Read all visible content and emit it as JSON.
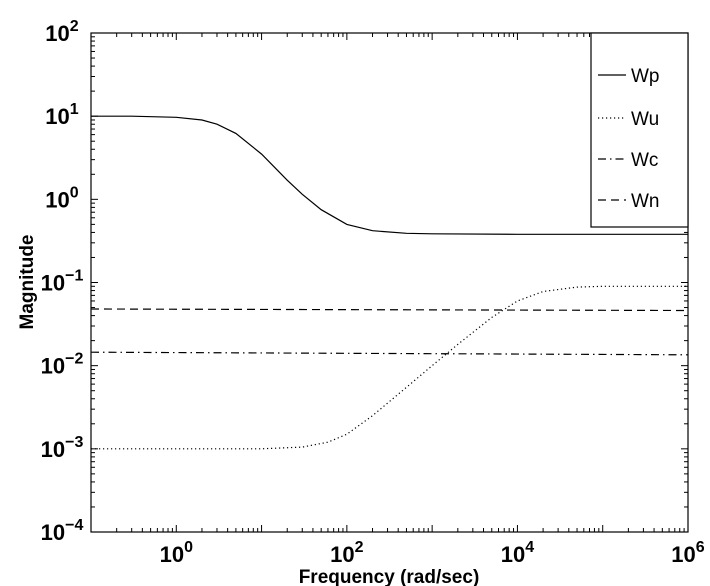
{
  "chart_data": {
    "type": "line",
    "xlabel": "Frequency (rad/sec)",
    "ylabel": "Magnitude",
    "x_scale": "log",
    "y_scale": "log",
    "xlim": [
      0.1,
      1000000
    ],
    "ylim": [
      0.0001,
      100
    ],
    "grid": false,
    "legend_position": "top-right",
    "x_ticks": [
      {
        "value": 1,
        "base": "10",
        "exp": "0"
      },
      {
        "value": 100,
        "base": "10",
        "exp": "2"
      },
      {
        "value": 10000,
        "base": "10",
        "exp": "4"
      },
      {
        "value": 1000000,
        "base": "10",
        "exp": "6"
      }
    ],
    "y_ticks": [
      {
        "value": 0.0001,
        "base": "10",
        "exp": "−4"
      },
      {
        "value": 0.001,
        "base": "10",
        "exp": "−3"
      },
      {
        "value": 0.01,
        "base": "10",
        "exp": "−2"
      },
      {
        "value": 0.1,
        "base": "10",
        "exp": "−1"
      },
      {
        "value": 1,
        "base": "10",
        "exp": "0"
      },
      {
        "value": 10,
        "base": "10",
        "exp": "1"
      },
      {
        "value": 100,
        "base": "10",
        "exp": "2"
      }
    ],
    "series": [
      {
        "name": "Wp",
        "style": "solid",
        "x": [
          0.1,
          0.3,
          1,
          2,
          3,
          5,
          10,
          20,
          30,
          50,
          100,
          200,
          500,
          1000,
          10000,
          100000,
          1000000
        ],
        "y": [
          10,
          10,
          9.7,
          9.0,
          8.0,
          6.2,
          3.5,
          1.7,
          1.15,
          0.75,
          0.5,
          0.42,
          0.39,
          0.385,
          0.38,
          0.38,
          0.38
        ]
      },
      {
        "name": "Wu",
        "style": "dotted",
        "x": [
          0.1,
          1,
          10,
          30,
          60,
          100,
          200,
          500,
          1000,
          2000,
          5000,
          10000,
          20000,
          50000,
          100000,
          1000000
        ],
        "y": [
          0.001,
          0.001,
          0.001,
          0.00105,
          0.0012,
          0.0015,
          0.0025,
          0.0055,
          0.01,
          0.018,
          0.038,
          0.06,
          0.078,
          0.088,
          0.09,
          0.09
        ]
      },
      {
        "name": "Wc",
        "style": "dashdot",
        "x": [
          0.1,
          1000000
        ],
        "y": [
          0.0145,
          0.0135
        ]
      },
      {
        "name": "Wn",
        "style": "dashed",
        "x": [
          0.1,
          1000000
        ],
        "y": [
          0.048,
          0.046
        ]
      }
    ],
    "colors": {
      "line": "#000000",
      "background": "#ffffff"
    }
  }
}
